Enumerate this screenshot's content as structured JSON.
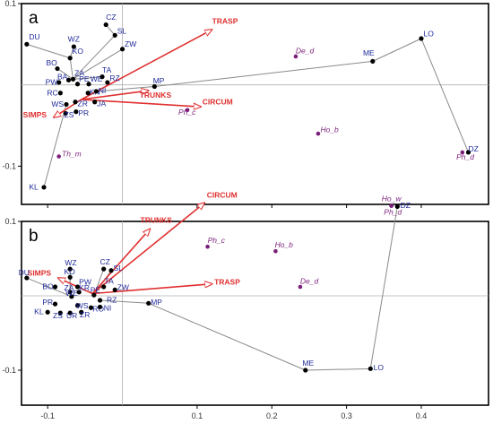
{
  "chart_data": [
    {
      "type": "scatter",
      "panel_label": "a",
      "xlim": [
        -0.135,
        0.49
      ],
      "ylim": [
        -0.147,
        0.1
      ],
      "xticks": [
        -0.1,
        0.1,
        0.2,
        0.3,
        0.4
      ],
      "xtick_labels": [],
      "yticks": [
        0.1,
        -0.1
      ],
      "ytick_labels": [
        "0.1",
        "-0.1"
      ],
      "grid": false,
      "colors": {
        "site": "#1e2a9a",
        "species": "#7a1f7a",
        "variable": "#e03030",
        "line": "#8a8a8a"
      },
      "sites": [
        {
          "name": "DU",
          "x": -0.128,
          "y": 0.05,
          "lx": 0.003,
          "ly": 0.006
        },
        {
          "name": "WZ",
          "x": -0.065,
          "y": 0.047,
          "lx": -0.008,
          "ly": 0.006
        },
        {
          "name": "KO",
          "x": -0.07,
          "y": 0.033,
          "lx": 0.003,
          "ly": 0.005
        },
        {
          "name": "BO",
          "x": -0.087,
          "y": 0.02,
          "lx": -0.015,
          "ly": 0.004
        },
        {
          "name": "BA",
          "x": -0.072,
          "y": 0.006,
          "lx": -0.015,
          "ly": 0.001
        },
        {
          "name": "PW",
          "x": -0.085,
          "y": 0.003,
          "lx": -0.018,
          "ly": -0.003
        },
        {
          "name": "ZA",
          "x": -0.066,
          "y": 0.007,
          "lx": 0.002,
          "ly": 0.004
        },
        {
          "name": "PE",
          "x": -0.06,
          "y": 0.001,
          "lx": 0.002,
          "ly": 0.003
        },
        {
          "name": "WE",
          "x": -0.045,
          "y": 0.001,
          "lx": 0.002,
          "ly": 0.003
        },
        {
          "name": "RC",
          "x": -0.083,
          "y": -0.01,
          "lx": -0.018,
          "ly": -0.003
        },
        {
          "name": "KN",
          "x": -0.046,
          "y": -0.01,
          "lx": 0.002,
          "ly": -0.002
        },
        {
          "name": "NI",
          "x": -0.035,
          "y": -0.008,
          "lx": 0.003,
          "ly": -0.002
        },
        {
          "name": "WS",
          "x": -0.075,
          "y": -0.024,
          "lx": -0.02,
          "ly": -0.003
        },
        {
          "name": "ZR",
          "x": -0.063,
          "y": -0.021,
          "lx": 0.003,
          "ly": -0.005
        },
        {
          "name": "ZS",
          "x": -0.076,
          "y": -0.035,
          "lx": -0.002,
          "ly": -0.005
        },
        {
          "name": "PR",
          "x": -0.062,
          "y": -0.033,
          "lx": 0.003,
          "ly": -0.005
        },
        {
          "name": "JA",
          "x": -0.037,
          "y": -0.021,
          "lx": 0.003,
          "ly": -0.005
        },
        {
          "name": "CZ",
          "x": -0.022,
          "y": 0.074,
          "lx": 0.0,
          "ly": 0.006
        },
        {
          "name": "SL",
          "x": -0.01,
          "y": 0.061,
          "lx": 0.003,
          "ly": 0.002
        },
        {
          "name": "ZW",
          "x": 0.0,
          "y": 0.044,
          "lx": 0.003,
          "ly": 0.003
        },
        {
          "name": "TA",
          "x": -0.027,
          "y": 0.01,
          "lx": 0.0,
          "ly": 0.005
        },
        {
          "name": "RZ",
          "x": -0.02,
          "y": 0.003,
          "lx": 0.003,
          "ly": 0.002
        },
        {
          "name": "MP",
          "x": 0.043,
          "y": -0.002,
          "lx": -0.002,
          "ly": 0.004
        },
        {
          "name": "ME",
          "x": 0.335,
          "y": 0.029,
          "lx": -0.013,
          "ly": 0.007
        },
        {
          "name": "LO",
          "x": 0.4,
          "y": 0.057,
          "lx": 0.003,
          "ly": 0.003
        },
        {
          "name": "DZ",
          "x": 0.463,
          "y": -0.083,
          "lx": 0.0,
          "ly": 0.001
        },
        {
          "name": "KL",
          "x": -0.105,
          "y": -0.126,
          "lx": -0.02,
          "ly": -0.003
        }
      ],
      "species": [
        {
          "name": "De_d",
          "x": 0.232,
          "y": 0.035,
          "lx": 0.0,
          "ly": 0.004
        },
        {
          "name": "Ph_c",
          "x": 0.087,
          "y": -0.031,
          "lx": -0.012,
          "ly": -0.006
        },
        {
          "name": "Ho_b",
          "x": 0.262,
          "y": -0.06,
          "lx": 0.003,
          "ly": 0.002
        },
        {
          "name": "Ph_d",
          "x": 0.455,
          "y": -0.083,
          "lx": -0.008,
          "ly": -0.009
        },
        {
          "name": "Th_m",
          "x": -0.085,
          "y": -0.088,
          "lx": 0.004,
          "ly": 0.0
        }
      ],
      "variables": [
        {
          "name": "TRASP",
          "x": 0.12,
          "y": 0.068,
          "lx": 0.0,
          "ly": 0.007
        },
        {
          "name": "CIRCUM",
          "x": 0.105,
          "y": -0.027,
          "lx": 0.002,
          "ly": 0.003
        },
        {
          "name": "TRUNKS",
          "x": 0.035,
          "y": -0.007,
          "lx": -0.012,
          "ly": -0.009
        },
        {
          "name": "SIMPS",
          "x": -0.092,
          "y": -0.04,
          "lx": -0.041,
          "ly": 0.0
        }
      ],
      "origin": [
        -0.055,
        -0.018
      ],
      "links": [
        [
          "DU",
          "KO"
        ],
        [
          "WZ",
          "KO"
        ],
        [
          "KO",
          "ZA"
        ],
        [
          "BO",
          "ZA"
        ],
        [
          "CZ",
          "SL"
        ],
        [
          "SL",
          "ZA"
        ],
        [
          "ZW",
          "ZA"
        ],
        [
          "TA",
          "ZA"
        ],
        [
          "MP",
          "NI"
        ],
        [
          "MP",
          "ME"
        ],
        [
          "ME",
          "LO"
        ],
        [
          "LO",
          "DZ"
        ],
        [
          "KL",
          "WS"
        ]
      ]
    },
    {
      "type": "scatter",
      "panel_label": "b",
      "xlim": [
        -0.135,
        0.49
      ],
      "ylim": [
        -0.147,
        0.1
      ],
      "xticks": [
        -0.1,
        0.1,
        0.2,
        0.3,
        0.4
      ],
      "xtick_labels": [
        "-0.1",
        "0.1",
        "0.2",
        "0.3",
        "0.4"
      ],
      "yticks": [
        0.1,
        -0.1
      ],
      "ytick_labels": [
        "0.1",
        "-0.1"
      ],
      "grid": false,
      "colors": {
        "site": "#1e2a9a",
        "species": "#7a1f7a",
        "variable": "#e03030",
        "line": "#8a8a8a"
      },
      "sites": [
        {
          "name": "DU",
          "x": -0.128,
          "y": 0.024,
          "lx": -0.011,
          "ly": 0.004
        },
        {
          "name": "WZ",
          "x": -0.07,
          "y": 0.036,
          "lx": -0.007,
          "ly": 0.005
        },
        {
          "name": "KO",
          "x": -0.07,
          "y": 0.025,
          "lx": -0.008,
          "ly": 0.004
        },
        {
          "name": "PW",
          "x": -0.06,
          "y": 0.012,
          "lx": 0.002,
          "ly": 0.003
        },
        {
          "name": "BO",
          "x": -0.09,
          "y": 0.012,
          "lx": -0.017,
          "ly": -0.003
        },
        {
          "name": "ZA",
          "x": -0.07,
          "y": 0.005,
          "lx": -0.008,
          "ly": 0.002
        },
        {
          "name": "KR",
          "x": -0.058,
          "y": 0.005,
          "lx": 0.0,
          "ly": 0.002
        },
        {
          "name": "WE",
          "x": -0.068,
          "y": -0.001,
          "lx": -0.008,
          "ly": 0.001
        },
        {
          "name": "PE",
          "x": -0.038,
          "y": 0.001,
          "lx": -0.005,
          "ly": 0.003
        },
        {
          "name": "TA",
          "x": -0.025,
          "y": 0.012,
          "lx": 0.001,
          "ly": 0.004
        },
        {
          "name": "ZW",
          "x": -0.01,
          "y": 0.008,
          "lx": 0.003,
          "ly": 0.0
        },
        {
          "name": "CZ",
          "x": -0.025,
          "y": 0.036,
          "lx": -0.005,
          "ly": 0.006
        },
        {
          "name": "SL",
          "x": -0.015,
          "y": 0.034,
          "lx": 0.003,
          "ly": 0.0
        },
        {
          "name": "PR",
          "x": -0.09,
          "y": -0.011,
          "lx": -0.017,
          "ly": -0.001
        },
        {
          "name": "WS",
          "x": -0.06,
          "y": -0.013,
          "lx": -0.002,
          "ly": -0.004
        },
        {
          "name": "RZ",
          "x": -0.03,
          "y": -0.006,
          "lx": 0.009,
          "ly": -0.003
        },
        {
          "name": "RO",
          "x": -0.042,
          "y": -0.016,
          "lx": 0.002,
          "ly": -0.005
        },
        {
          "name": "NI",
          "x": -0.03,
          "y": -0.015,
          "lx": 0.005,
          "ly": -0.005
        },
        {
          "name": "KL",
          "x": -0.1,
          "y": -0.022,
          "lx": -0.018,
          "ly": -0.003
        },
        {
          "name": "ZS",
          "x": -0.083,
          "y": -0.023,
          "lx": -0.01,
          "ly": -0.007
        },
        {
          "name": "UR",
          "x": -0.07,
          "y": -0.023,
          "lx": -0.005,
          "ly": -0.007
        },
        {
          "name": "ZR",
          "x": -0.055,
          "y": -0.022,
          "lx": -0.002,
          "ly": -0.007
        },
        {
          "name": "MP",
          "x": 0.035,
          "y": -0.01,
          "lx": 0.003,
          "ly": -0.002
        },
        {
          "name": "ME",
          "x": 0.245,
          "y": -0.1,
          "lx": -0.004,
          "ly": 0.006
        },
        {
          "name": "LO",
          "x": 0.332,
          "y": -0.098,
          "lx": 0.004,
          "ly": -0.002
        },
        {
          "name": "DZ",
          "x": 0.368,
          "y": 0.12,
          "lx": 0.004,
          "ly": -0.002
        }
      ],
      "species": [
        {
          "name": "Ph_c",
          "x": 0.114,
          "y": 0.066,
          "lx": 0.0,
          "ly": 0.005
        },
        {
          "name": "Ho_b",
          "x": 0.205,
          "y": 0.06,
          "lx": -0.001,
          "ly": 0.005
        },
        {
          "name": "De_d",
          "x": 0.238,
          "y": 0.012,
          "lx": 0.0,
          "ly": 0.004
        },
        {
          "name": "Ho_w",
          "x": 0.36,
          "y": 0.121,
          "lx": -0.013,
          "ly": 0.006
        },
        {
          "name": "Ph_d",
          "x": 0.36,
          "y": 0.121,
          "lx": -0.01,
          "ly": -0.012
        }
      ],
      "variables": [
        {
          "name": "CIRCUM",
          "x": 0.11,
          "y": 0.125,
          "lx": 0.003,
          "ly": 0.007
        },
        {
          "name": "TRUNKS",
          "x": 0.037,
          "y": 0.09,
          "lx": -0.013,
          "ly": 0.008
        },
        {
          "name": "TRASP",
          "x": 0.12,
          "y": 0.016,
          "lx": 0.003,
          "ly": -0.001
        },
        {
          "name": "SIMPS",
          "x": -0.086,
          "y": 0.024,
          "lx": -0.041,
          "ly": 0.003
        }
      ],
      "origin": [
        -0.04,
        0.003
      ],
      "links": [
        [
          "DU",
          "WE"
        ],
        [
          "WZ",
          "ZA"
        ],
        [
          "KO",
          "ZA"
        ],
        [
          "CZ",
          "PE"
        ],
        [
          "SL",
          "PE"
        ],
        [
          "MP",
          "RZ"
        ],
        [
          "MP",
          "ME"
        ],
        [
          "ME",
          "LO"
        ],
        [
          "LO",
          "DZ"
        ]
      ]
    }
  ]
}
